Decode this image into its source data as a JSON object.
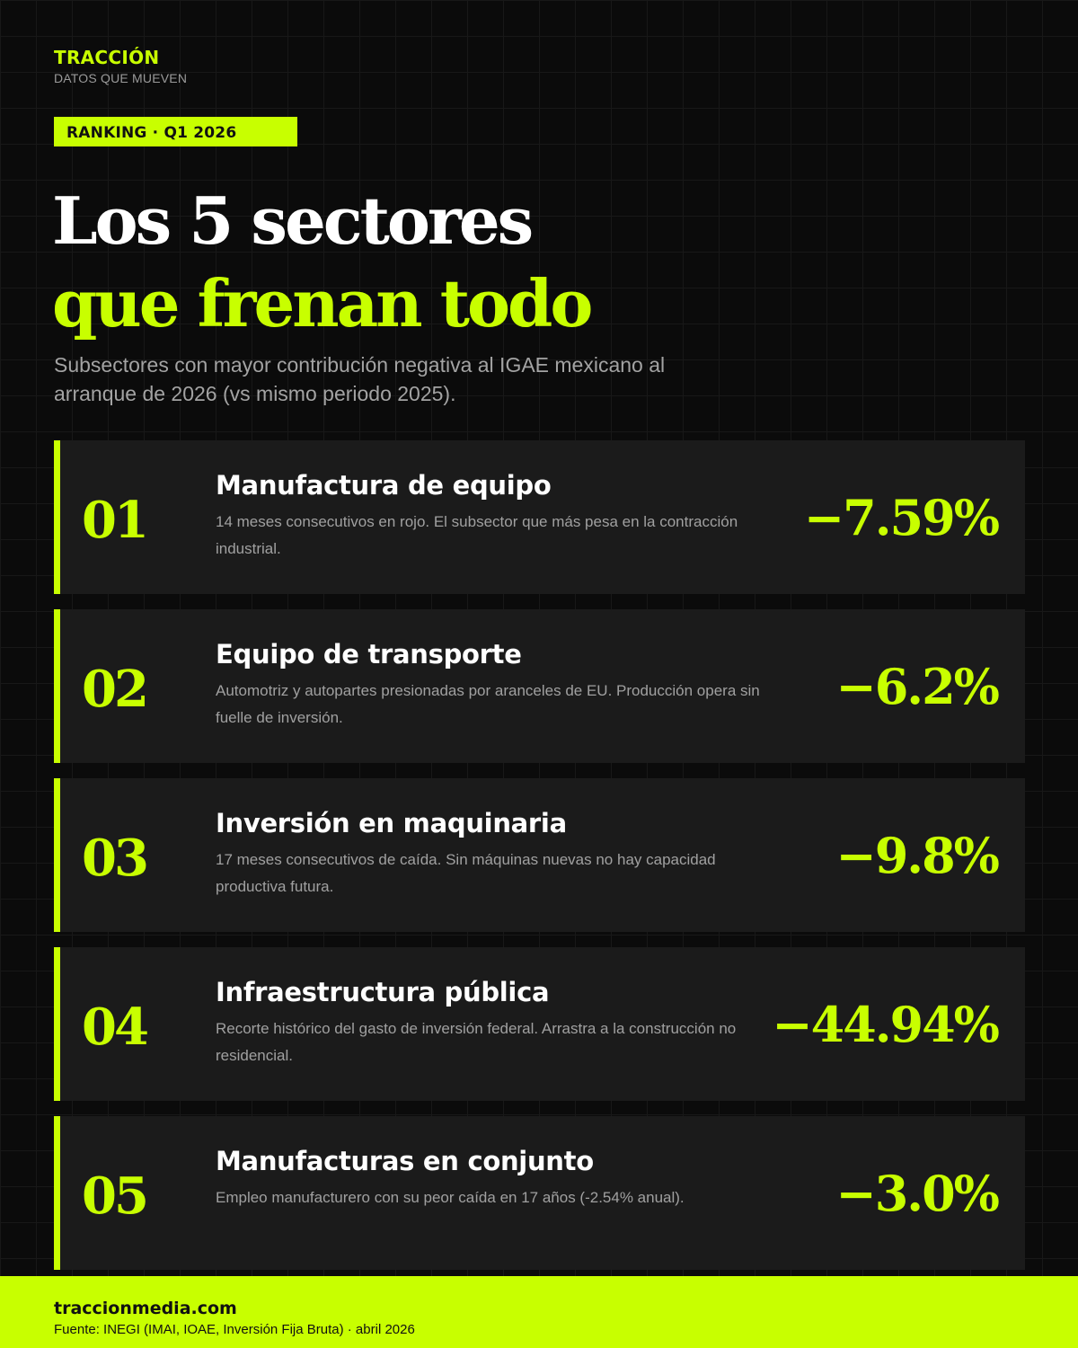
{
  "brand": {
    "name": "TRACCIÓN",
    "tagline": "DATOS QUE MUEVEN"
  },
  "badge": "RANKING · Q1 2026",
  "title": {
    "line1": "Los 5 sectores",
    "line2": "que frenan todo"
  },
  "subtitle": "Subsectores con mayor contribución negativa al IGAE mexicano al arranque de 2026 (vs mismo periodo 2025).",
  "sectors": [
    {
      "rank": "01",
      "name": "Manufactura de equipo",
      "description": "14 meses consecutivos en rojo. El subsector que más pesa en la contracción industrial.",
      "value": "−7.59%"
    },
    {
      "rank": "02",
      "name": "Equipo de transporte",
      "description": "Automotriz y autopartes presionadas por aranceles de EU. Producción opera sin fuelle de inversión.",
      "value": "−6.2%"
    },
    {
      "rank": "03",
      "name": "Inversión en maquinaria",
      "description": "17 meses consecutivos de caída. Sin máquinas nuevas no hay capacidad productiva futura.",
      "value": "−9.8%"
    },
    {
      "rank": "04",
      "name": "Infraestructura pública",
      "description": "Recorte histórico del gasto de inversión federal. Arrastra a la construcción no residencial.",
      "value": "−44.94%"
    },
    {
      "rank": "05",
      "name": "Manufacturas en conjunto",
      "description": "Empleo manufacturero con su peor caída en 17 años (-2.54% anual).",
      "value": "−3.0%"
    }
  ],
  "footer": {
    "site": "traccionmedia.com",
    "source": "Fuente: INEGI (IMAI, IOAE, Inversión Fija Bruta) · abril 2026"
  },
  "colors": {
    "accent": "#c8ff00",
    "background": "#0b0b0b",
    "card": "#1b1b1b",
    "muted_text": "#a0a0a0"
  }
}
